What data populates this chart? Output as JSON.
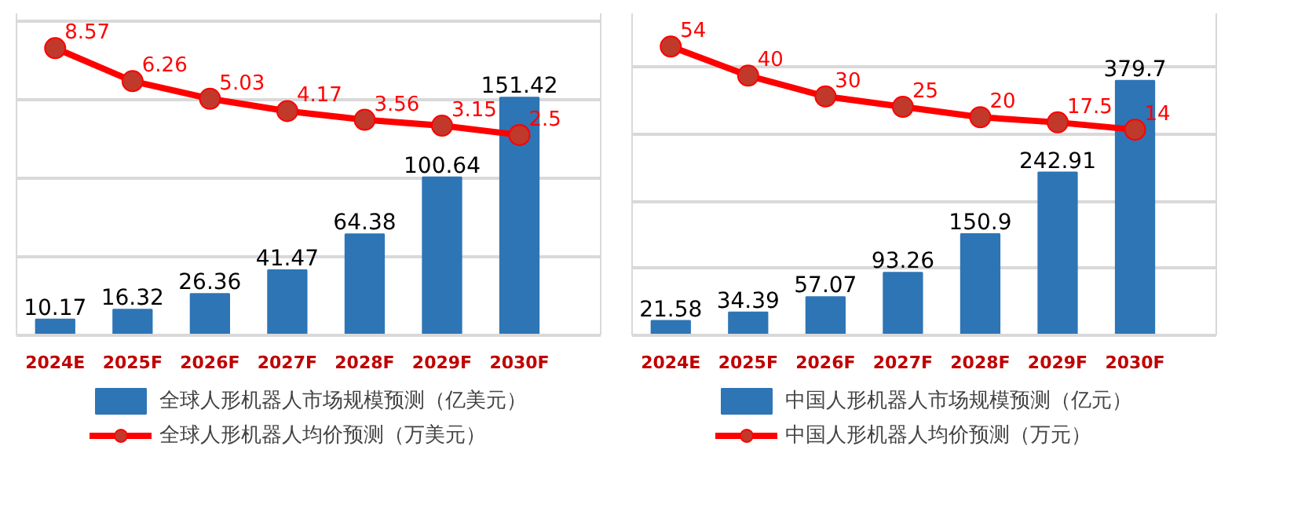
{
  "chart_data": [
    {
      "type": "bar",
      "categories": [
        "2024E",
        "2025F",
        "2026F",
        "2027F",
        "2028F",
        "2029F",
        "2030F"
      ],
      "series": [
        {
          "name": "全球人形机器人市场规模预测（亿美元）",
          "color": "#2e75b6",
          "values": [
            10.17,
            16.32,
            26.36,
            41.47,
            64.38,
            100.64,
            151.42
          ]
        },
        {
          "type": "line",
          "axis": "y2",
          "name": "全球人形机器人均价预测（万美元）",
          "color": "#ff0000",
          "marker": "circle",
          "values": [
            8.57,
            6.26,
            5.03,
            4.17,
            3.56,
            3.15,
            2.5
          ]
        }
      ],
      "ylim": [
        0,
        205
      ],
      "yticks": [
        {
          "value": 0,
          "label": null
        },
        {
          "value": 50,
          "label": null
        },
        {
          "value": 100,
          "label": null
        },
        {
          "value": 150,
          "label": null
        },
        {
          "value": 200,
          "label": null
        }
      ],
      "y2lim": [
        -11.5,
        11
      ],
      "grid": "y",
      "legend": "bottom",
      "tick_labels": "x",
      "data_labels": true
    },
    {
      "type": "bar",
      "categories": [
        "2024E",
        "2025F",
        "2026F",
        "2027F",
        "2028F",
        "2029F",
        "2030F"
      ],
      "series": [
        {
          "name": "中国人形机器人市场规模预测（亿元）",
          "color": "#2e75b6",
          "values": [
            21.58,
            34.39,
            57.07,
            93.26,
            150.9,
            242.91,
            379.7
          ]
        },
        {
          "type": "line",
          "axis": "y2",
          "name": "中国人形机器人均价预测（万元）",
          "color": "#ff0000",
          "marker": "circle",
          "values": [
            54,
            40,
            30,
            25,
            20,
            17.5,
            14
          ]
        }
      ],
      "ylim": [
        0,
        480
      ],
      "yticks": [
        {
          "value": 0,
          "label": null
        },
        {
          "value": 100,
          "label": null
        },
        {
          "value": 200,
          "label": null
        },
        {
          "value": 300,
          "label": null
        },
        {
          "value": 400,
          "label": null
        }
      ],
      "y2lim": [
        -85,
        70
      ],
      "grid": "y",
      "legend": "bottom",
      "tick_labels": "x",
      "data_labels": true
    }
  ]
}
